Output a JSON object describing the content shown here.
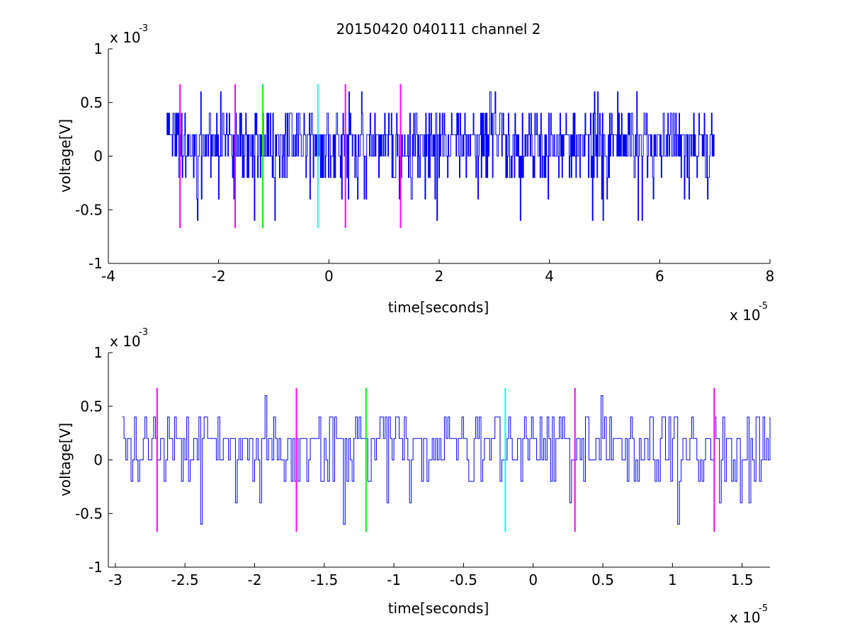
{
  "figure": {
    "title": "20150420 040111 channel 2",
    "background": "#ffffff"
  },
  "colors": {
    "signal": "#0000ff",
    "magenta": "#ff00ff",
    "green": "#00ff00",
    "cyan": "#00ffff",
    "axes": "#000000"
  },
  "chart_data": [
    {
      "type": "line",
      "title": "20150420 040111 channel 2",
      "xlabel": "time[seconds]",
      "ylabel": "voltage[V]",
      "x_multiplier": "x 10",
      "x_exponent": "-5",
      "y_multiplier": "x 10",
      "y_exponent": "-3",
      "xlim": [
        -4,
        8
      ],
      "ylim": [
        -1,
        1
      ],
      "xticks": [
        -4,
        -2,
        0,
        2,
        4,
        6,
        8
      ],
      "xtick_labels": [
        "-4",
        "-2",
        "0",
        "2",
        "4",
        "6",
        "8"
      ],
      "yticks": [
        1,
        0.5,
        0,
        -0.5,
        -1
      ],
      "ytick_labels": [
        "1",
        "0.5",
        "0",
        "-0.5",
        "-1"
      ],
      "grid": false,
      "units_note": "x in 1e-5 s, y in 1e-3 V",
      "signal": {
        "x_start": -2.95,
        "x_end": 7.0,
        "baseline": 0.1,
        "quantization": 0.2,
        "range": [
          -0.6,
          0.6
        ]
      },
      "vertical_lines": [
        {
          "x": -2.7,
          "color": "magenta",
          "ymin": -0.67,
          "ymax": 0.67
        },
        {
          "x": -1.7,
          "color": "magenta",
          "ymin": -0.67,
          "ymax": 0.67
        },
        {
          "x": -1.2,
          "color": "green",
          "ymin": -0.67,
          "ymax": 0.67
        },
        {
          "x": -0.2,
          "color": "cyan",
          "ymin": -0.67,
          "ymax": 0.67
        },
        {
          "x": 0.3,
          "color": "magenta",
          "ymin": -0.67,
          "ymax": 0.67
        },
        {
          "x": 1.3,
          "color": "magenta",
          "ymin": -0.67,
          "ymax": 0.67
        }
      ]
    },
    {
      "type": "line",
      "xlabel": "time[seconds]",
      "ylabel": "voltage[V]",
      "x_multiplier": "x 10",
      "x_exponent": "-5",
      "y_multiplier": "x 10",
      "y_exponent": "-3",
      "xlim": [
        -3.05,
        1.7
      ],
      "ylim": [
        -1,
        1
      ],
      "xticks": [
        -3,
        -2.5,
        -2,
        -1.5,
        -1,
        -0.5,
        0,
        0.5,
        1,
        1.5
      ],
      "xtick_labels": [
        "-3",
        "-2.5",
        "-2",
        "-1.5",
        "-1",
        "-0.5",
        "0",
        "0.5",
        "1",
        "1.5"
      ],
      "yticks": [
        1,
        0.5,
        0,
        -0.5,
        -1
      ],
      "ytick_labels": [
        "1",
        "0.5",
        "0",
        "-0.5",
        "-1"
      ],
      "grid": false,
      "units_note": "x in 1e-5 s, y in 1e-3 V",
      "signal": {
        "x_start": -2.95,
        "x_end": 1.7,
        "baseline": 0.1,
        "quantization": 0.2,
        "range": [
          -0.6,
          0.6
        ]
      },
      "vertical_lines": [
        {
          "x": -2.7,
          "color": "magenta",
          "ymin": -0.67,
          "ymax": 0.67
        },
        {
          "x": -1.7,
          "color": "magenta",
          "ymin": -0.67,
          "ymax": 0.67
        },
        {
          "x": -1.2,
          "color": "green",
          "ymin": -0.67,
          "ymax": 0.67
        },
        {
          "x": -0.2,
          "color": "cyan",
          "ymin": -0.67,
          "ymax": 0.67
        },
        {
          "x": 0.3,
          "color": "magenta",
          "ymin": -0.67,
          "ymax": 0.67
        },
        {
          "x": 1.3,
          "color": "magenta",
          "ymin": -0.67,
          "ymax": 0.67
        }
      ]
    }
  ]
}
